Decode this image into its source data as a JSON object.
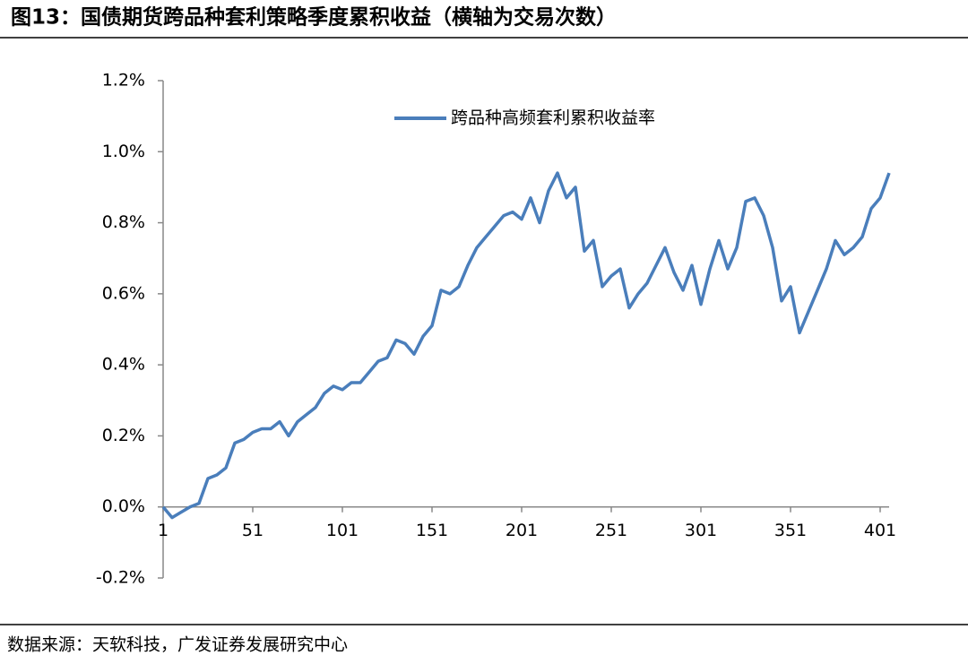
{
  "chart_data": {
    "type": "line",
    "title": "图13：国债期货跨品种套利策略季度累积收益（横轴为交易次数）",
    "source": "数据来源：天软科技，广发证券发展研究中心",
    "x": [
      1,
      6,
      11,
      16,
      21,
      26,
      31,
      36,
      41,
      46,
      51,
      56,
      61,
      66,
      71,
      76,
      81,
      86,
      91,
      96,
      101,
      106,
      111,
      116,
      121,
      126,
      131,
      136,
      141,
      146,
      151,
      156,
      161,
      166,
      171,
      176,
      181,
      186,
      191,
      196,
      201,
      206,
      211,
      216,
      221,
      226,
      231,
      236,
      241,
      246,
      251,
      256,
      261,
      266,
      271,
      276,
      281,
      286,
      291,
      296,
      301,
      306,
      311,
      316,
      321,
      326,
      331,
      336,
      341,
      346,
      351,
      356,
      361,
      366,
      371,
      376,
      381,
      386,
      391,
      396,
      401,
      406
    ],
    "series": [
      {
        "name": "跨品种高频套利累积收益率",
        "color": "#4a7ebb",
        "values": [
          0.0,
          -0.03,
          -0.015,
          0.0,
          0.01,
          0.08,
          0.09,
          0.11,
          0.18,
          0.19,
          0.21,
          0.22,
          0.22,
          0.24,
          0.2,
          0.24,
          0.26,
          0.28,
          0.32,
          0.34,
          0.33,
          0.35,
          0.35,
          0.38,
          0.41,
          0.42,
          0.47,
          0.46,
          0.43,
          0.48,
          0.51,
          0.61,
          0.6,
          0.62,
          0.68,
          0.73,
          0.76,
          0.79,
          0.82,
          0.83,
          0.81,
          0.87,
          0.8,
          0.89,
          0.94,
          0.87,
          0.9,
          0.72,
          0.75,
          0.62,
          0.65,
          0.67,
          0.56,
          0.6,
          0.63,
          0.68,
          0.73,
          0.66,
          0.61,
          0.68,
          0.57,
          0.67,
          0.75,
          0.67,
          0.73,
          0.86,
          0.87,
          0.82,
          0.73,
          0.58,
          0.62,
          0.49,
          0.55,
          0.61,
          0.67,
          0.75,
          0.71,
          0.73,
          0.76,
          0.84,
          0.87,
          0.94
        ]
      }
    ],
    "xlim": [
      1,
      406
    ],
    "xticks": [
      1,
      51,
      101,
      151,
      201,
      251,
      301,
      351,
      401
    ],
    "ylim": [
      -0.2,
      1.2
    ],
    "yticks": [
      {
        "value": -0.2,
        "label": "-0.2%"
      },
      {
        "value": 0,
        "label": "0.0%"
      },
      {
        "value": 0.2,
        "label": "0.2%"
      },
      {
        "value": 0.4,
        "label": "0.4%"
      },
      {
        "value": 0.6,
        "label": "0.6%"
      },
      {
        "value": 0.8,
        "label": "0.8%"
      },
      {
        "value": 1.0,
        "label": "1.0%"
      },
      {
        "value": 1.2,
        "label": "1.2%"
      }
    ],
    "legend": "top-right"
  }
}
